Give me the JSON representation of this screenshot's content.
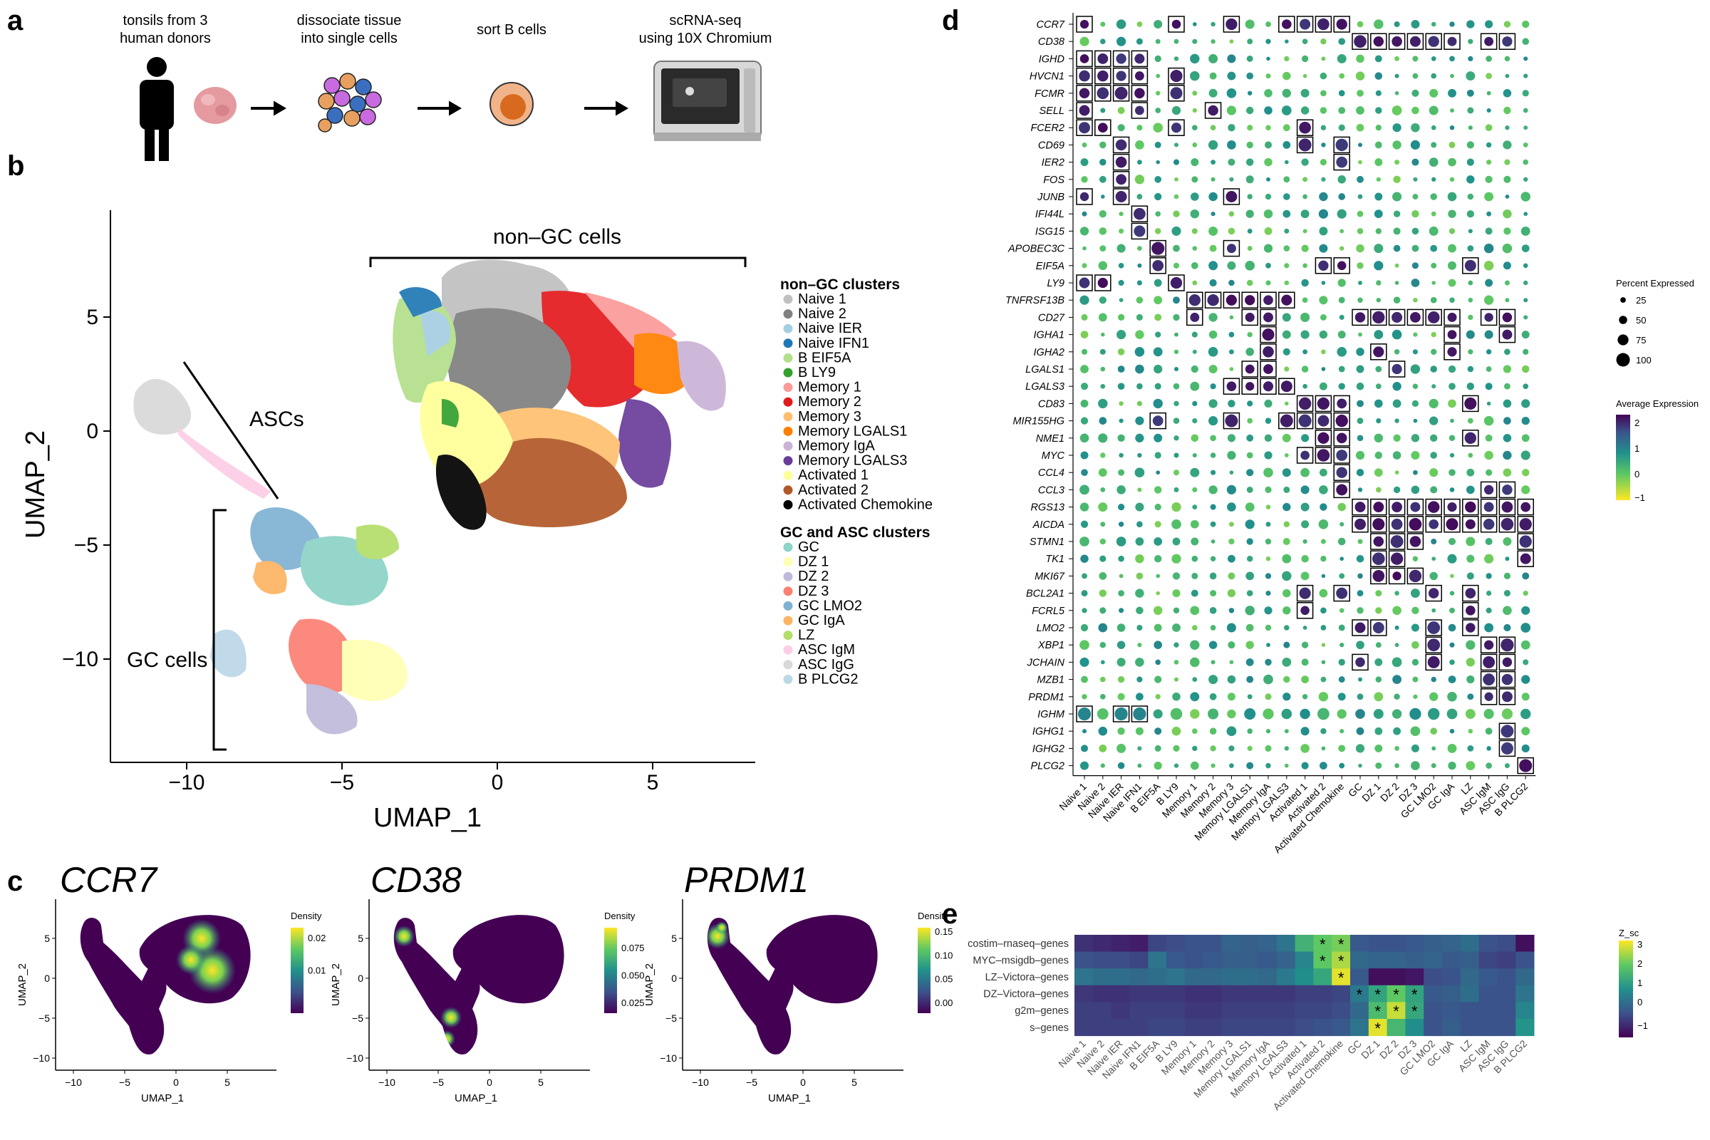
{
  "panels": {
    "a": "a",
    "b": "b",
    "c": "c",
    "d": "d",
    "e": "e"
  },
  "workflow": {
    "steps": [
      {
        "line1": "tonsils from 3",
        "line2": "human donors"
      },
      {
        "line1": "dissociate tissue",
        "line2": "into single cells"
      },
      {
        "line1": "sort B cells",
        "line2": ""
      },
      {
        "line1": "scRNA-seq",
        "line2": "using 10X Chromium"
      }
    ]
  },
  "umap": {
    "xlabel": "UMAP_1",
    "ylabel": "UMAP_2",
    "xticks": [
      "−10",
      "−5",
      "0",
      "5"
    ],
    "yticks": [
      "5",
      "0",
      "−5",
      "−10"
    ],
    "annotations": {
      "non_gc": "non–GC cells",
      "ascs": "ASCs",
      "gc": "GC cells"
    },
    "legend_title_1": "non–GC clusters",
    "legend_title_2": "GC and ASC clusters",
    "clusters_1": [
      {
        "name": "Naive 1",
        "color": "#c0c0c0"
      },
      {
        "name": "Naive 2",
        "color": "#808080"
      },
      {
        "name": "Naive IER",
        "color": "#a6cee3"
      },
      {
        "name": "Naive IFN1",
        "color": "#1f78b4"
      },
      {
        "name": "B EIF5A",
        "color": "#b2df8a"
      },
      {
        "name": "B LY9",
        "color": "#33a02c"
      },
      {
        "name": "Memory 1",
        "color": "#fb9a99"
      },
      {
        "name": "Memory 2",
        "color": "#e31a1c"
      },
      {
        "name": "Memory 3",
        "color": "#fdbf6f"
      },
      {
        "name": "Memory LGALS1",
        "color": "#ff7f00"
      },
      {
        "name": "Memory IgA",
        "color": "#cab2d6"
      },
      {
        "name": "Memory LGALS3",
        "color": "#6a3d9a"
      },
      {
        "name": "Activated 1",
        "color": "#ffff99"
      },
      {
        "name": "Activated 2",
        "color": "#b15928"
      },
      {
        "name": "Activated Chemokine",
        "color": "#000000"
      }
    ],
    "clusters_2": [
      {
        "name": "GC",
        "color": "#8dd3c7"
      },
      {
        "name": "DZ 1",
        "color": "#ffffb3"
      },
      {
        "name": "DZ 2",
        "color": "#bebada"
      },
      {
        "name": "DZ 3",
        "color": "#fb8072"
      },
      {
        "name": "GC LMO2",
        "color": "#80b1d3"
      },
      {
        "name": "GC IgA",
        "color": "#fdb462"
      },
      {
        "name": "LZ",
        "color": "#b3de69"
      },
      {
        "name": "ASC IgM",
        "color": "#fccde5"
      },
      {
        "name": "ASC IgG",
        "color": "#d9d9d9"
      },
      {
        "name": "B PLCG2",
        "color": "#bcd7e8"
      }
    ]
  },
  "density": {
    "genes": [
      "CCR7",
      "CD38",
      "PRDM1"
    ],
    "xlabel": "UMAP_1",
    "ylabel": "UMAP_2",
    "xticks": [
      "−10",
      "−5",
      "0",
      "5"
    ],
    "yticks": [
      "5",
      "0",
      "−5",
      "−10"
    ],
    "legend_title": "Density",
    "legend_ticks": [
      [
        "0.01",
        "0.02"
      ],
      [
        "0.025",
        "0.050",
        "0.075"
      ],
      [
        "0.00",
        "0.05",
        "0.10",
        "0.15"
      ]
    ]
  },
  "colors": {
    "viridis": [
      "#440154",
      "#3b528b",
      "#21918c",
      "#5ec962",
      "#fde725"
    ],
    "dot_low": "#fde725",
    "dot_high": "#440154"
  },
  "chart_data": [
    {
      "type": "scatter",
      "panel": "d",
      "chart": "dot plot",
      "genes": [
        "CCR7",
        "CD38",
        "IGHD",
        "HVCN1",
        "FCMR",
        "SELL",
        "FCER2",
        "CD69",
        "IER2",
        "FOS",
        "JUNB",
        "IFI44L",
        "ISG15",
        "APOBEC3C",
        "EIF5A",
        "LY9",
        "TNFRSF13B",
        "CD27",
        "IGHA1",
        "IGHA2",
        "LGALS1",
        "LGALS3",
        "CD83",
        "MIR155HG",
        "NME1",
        "MYC",
        "CCL4",
        "CCL3",
        "RGS13",
        "AICDA",
        "STMN1",
        "TK1",
        "MKI67",
        "BCL2A1",
        "FCRL5",
        "LMO2",
        "XBP1",
        "JCHAIN",
        "MZB1",
        "PRDM1",
        "IGHM",
        "IGHG1",
        "IGHG2",
        "PLCG2"
      ],
      "clusters": [
        "Naive 1",
        "Naive 2",
        "Naive IER",
        "Naive IFN1",
        "B EIF5A",
        "B LY9",
        "Memory 1",
        "Memory 2",
        "Memory 3",
        "Memory LGALS1",
        "Memory IgA",
        "Memory LGALS3",
        "Activated 1",
        "Activated 2",
        "Activated Chemokine",
        "GC",
        "DZ 1",
        "DZ 2",
        "DZ 3",
        "GC LMO2",
        "GC IgA",
        "LZ",
        "ASC IgM",
        "ASC IgG",
        "B PLCG2"
      ],
      "size_legend": {
        "title": "Percent Expressed",
        "values": [
          25,
          50,
          75,
          100
        ]
      },
      "color_legend": {
        "title": "Average Expression",
        "ticks": [
          "2",
          "1",
          "0",
          "−1"
        ],
        "range": [
          -1.5,
          2.5
        ]
      },
      "boxed": [
        [
          0,
          0
        ],
        [
          0,
          5
        ],
        [
          0,
          8
        ],
        [
          0,
          11
        ],
        [
          0,
          12
        ],
        [
          0,
          13
        ],
        [
          0,
          14
        ],
        [
          1,
          15
        ],
        [
          1,
          16
        ],
        [
          1,
          17
        ],
        [
          1,
          18
        ],
        [
          1,
          19
        ],
        [
          1,
          20
        ],
        [
          1,
          22
        ],
        [
          1,
          23
        ],
        [
          2,
          0
        ],
        [
          2,
          1
        ],
        [
          2,
          2
        ],
        [
          2,
          3
        ],
        [
          3,
          0
        ],
        [
          3,
          1
        ],
        [
          3,
          2
        ],
        [
          3,
          3
        ],
        [
          3,
          5
        ],
        [
          4,
          0
        ],
        [
          4,
          1
        ],
        [
          4,
          2
        ],
        [
          4,
          3
        ],
        [
          4,
          5
        ],
        [
          5,
          0
        ],
        [
          5,
          3
        ],
        [
          5,
          7
        ],
        [
          6,
          0
        ],
        [
          6,
          1
        ],
        [
          6,
          5
        ],
        [
          6,
          12
        ],
        [
          7,
          2
        ],
        [
          7,
          12
        ],
        [
          7,
          14
        ],
        [
          8,
          2
        ],
        [
          8,
          14
        ],
        [
          9,
          2
        ],
        [
          10,
          0
        ],
        [
          10,
          2
        ],
        [
          10,
          8
        ],
        [
          11,
          3
        ],
        [
          12,
          3
        ],
        [
          13,
          4
        ],
        [
          13,
          8
        ],
        [
          14,
          4
        ],
        [
          14,
          13
        ],
        [
          14,
          14
        ],
        [
          14,
          21
        ],
        [
          15,
          0
        ],
        [
          15,
          1
        ],
        [
          15,
          5
        ],
        [
          16,
          6
        ],
        [
          16,
          7
        ],
        [
          16,
          8
        ],
        [
          16,
          9
        ],
        [
          16,
          10
        ],
        [
          16,
          11
        ],
        [
          17,
          6
        ],
        [
          17,
          9
        ],
        [
          17,
          10
        ],
        [
          17,
          15
        ],
        [
          17,
          16
        ],
        [
          17,
          17
        ],
        [
          17,
          18
        ],
        [
          17,
          19
        ],
        [
          17,
          20
        ],
        [
          17,
          22
        ],
        [
          17,
          23
        ],
        [
          18,
          10
        ],
        [
          18,
          20
        ],
        [
          18,
          23
        ],
        [
          19,
          10
        ],
        [
          19,
          16
        ],
        [
          19,
          20
        ],
        [
          20,
          9
        ],
        [
          20,
          10
        ],
        [
          20,
          17
        ],
        [
          21,
          8
        ],
        [
          21,
          9
        ],
        [
          21,
          10
        ],
        [
          21,
          11
        ],
        [
          22,
          12
        ],
        [
          22,
          13
        ],
        [
          22,
          14
        ],
        [
          22,
          21
        ],
        [
          23,
          4
        ],
        [
          23,
          8
        ],
        [
          23,
          11
        ],
        [
          23,
          12
        ],
        [
          23,
          13
        ],
        [
          23,
          14
        ],
        [
          24,
          13
        ],
        [
          24,
          14
        ],
        [
          24,
          21
        ],
        [
          25,
          12
        ],
        [
          25,
          13
        ],
        [
          25,
          14
        ],
        [
          26,
          14
        ],
        [
          27,
          14
        ],
        [
          27,
          22
        ],
        [
          27,
          23
        ],
        [
          28,
          15
        ],
        [
          28,
          16
        ],
        [
          28,
          17
        ],
        [
          28,
          18
        ],
        [
          28,
          19
        ],
        [
          28,
          20
        ],
        [
          28,
          21
        ],
        [
          28,
          22
        ],
        [
          28,
          23
        ],
        [
          28,
          24
        ],
        [
          29,
          15
        ],
        [
          29,
          16
        ],
        [
          29,
          17
        ],
        [
          29,
          18
        ],
        [
          29,
          19
        ],
        [
          29,
          20
        ],
        [
          29,
          21
        ],
        [
          29,
          22
        ],
        [
          29,
          23
        ],
        [
          29,
          24
        ],
        [
          30,
          16
        ],
        [
          30,
          17
        ],
        [
          30,
          18
        ],
        [
          30,
          24
        ],
        [
          31,
          16
        ],
        [
          31,
          17
        ],
        [
          31,
          24
        ],
        [
          32,
          16
        ],
        [
          32,
          17
        ],
        [
          32,
          18
        ],
        [
          33,
          12
        ],
        [
          33,
          14
        ],
        [
          33,
          19
        ],
        [
          33,
          21
        ],
        [
          34,
          12
        ],
        [
          34,
          21
        ],
        [
          35,
          15
        ],
        [
          35,
          16
        ],
        [
          35,
          19
        ],
        [
          35,
          21
        ],
        [
          36,
          19
        ],
        [
          36,
          22
        ],
        [
          36,
          23
        ],
        [
          37,
          15
        ],
        [
          37,
          19
        ],
        [
          37,
          22
        ],
        [
          37,
          23
        ],
        [
          38,
          22
        ],
        [
          38,
          23
        ],
        [
          39,
          22
        ],
        [
          39,
          23
        ],
        [
          40,
          0
        ],
        [
          40,
          2
        ],
        [
          40,
          3
        ],
        [
          41,
          23
        ],
        [
          42,
          23
        ],
        [
          43,
          24
        ]
      ]
    },
    {
      "type": "heatmap",
      "panel": "e",
      "rows": [
        "costim–rnaseq–genes",
        "MYC–msigdb–genes",
        "LZ–Victora–genes",
        "DZ–Victora–genes",
        "g2m–genes",
        "s–genes"
      ],
      "columns": [
        "Naive 1",
        "Naive 2",
        "Naive IER",
        "Naive IFN1",
        "B EIF5A",
        "B LY9",
        "Memory 1",
        "Memory 2",
        "Memory 3",
        "Memory LGALS1",
        "Memory IgA",
        "Memory LGALS3",
        "Activated 1",
        "Activated 2",
        "Activated Chemokine",
        "GC",
        "DZ 1",
        "DZ 2",
        "DZ 3",
        "GC LMO2",
        "GC IgA",
        "LZ",
        "ASC IgM",
        "ASC IgG",
        "B PLCG2"
      ],
      "values": [
        [
          -0.8,
          -0.9,
          -1.0,
          -1.1,
          -0.5,
          -0.4,
          -0.3,
          -0.3,
          0.0,
          -0.1,
          0.0,
          0.3,
          1.5,
          2.0,
          2.2,
          -0.2,
          -0.3,
          -0.3,
          -0.2,
          -0.1,
          0.0,
          0.2,
          -0.3,
          -0.4,
          -1.3
        ],
        [
          -0.3,
          -0.4,
          -0.4,
          -0.5,
          0.3,
          -0.2,
          -0.3,
          -0.2,
          -0.1,
          -0.1,
          -0.2,
          0.0,
          0.6,
          2.0,
          2.6,
          0.1,
          0.0,
          0.0,
          -0.1,
          0.0,
          -0.2,
          -0.1,
          -0.5,
          -0.6,
          -0.3
        ],
        [
          0.3,
          0.2,
          0.2,
          0.1,
          0.2,
          0.3,
          0.1,
          0.1,
          0.2,
          0.2,
          0.1,
          0.4,
          0.8,
          1.3,
          3.0,
          -0.2,
          -1.3,
          -1.3,
          -1.2,
          -0.4,
          -0.3,
          0.1,
          -0.2,
          -0.3,
          0.1
        ],
        [
          -0.7,
          -0.8,
          -0.8,
          -0.7,
          -0.7,
          -0.7,
          -0.8,
          -0.8,
          -0.7,
          -0.7,
          -0.7,
          -0.7,
          -0.6,
          -0.6,
          -0.5,
          0.4,
          1.2,
          2.0,
          1.2,
          -0.2,
          -0.1,
          0.2,
          -0.3,
          -0.3,
          0.3
        ],
        [
          -0.6,
          -0.6,
          -0.7,
          -0.6,
          -0.6,
          -0.6,
          -0.7,
          -0.7,
          -0.6,
          -0.6,
          -0.6,
          -0.6,
          -0.5,
          -0.5,
          -0.4,
          0.1,
          1.7,
          2.8,
          1.3,
          -0.3,
          -0.2,
          -0.3,
          -0.3,
          -0.3,
          0.6
        ],
        [
          -0.6,
          -0.6,
          -0.6,
          -0.6,
          -0.5,
          -0.5,
          -0.6,
          -0.6,
          -0.5,
          -0.5,
          -0.5,
          -0.5,
          -0.4,
          -0.3,
          -0.2,
          0.3,
          3.0,
          1.6,
          0.8,
          -0.3,
          -0.1,
          -0.3,
          -0.3,
          -0.3,
          0.9
        ]
      ],
      "stars": [
        [
          0,
          13
        ],
        [
          0,
          14
        ],
        [
          1,
          13
        ],
        [
          1,
          14
        ],
        [
          2,
          14
        ],
        [
          3,
          15
        ],
        [
          3,
          16
        ],
        [
          3,
          17
        ],
        [
          3,
          18
        ],
        [
          4,
          16
        ],
        [
          4,
          17
        ],
        [
          4,
          18
        ],
        [
          5,
          16
        ]
      ],
      "legend_title": "Z_sc",
      "legend_ticks": [
        "3",
        "2",
        "1",
        "0",
        "−1"
      ],
      "range": [
        -1.5,
        3.2
      ]
    }
  ]
}
